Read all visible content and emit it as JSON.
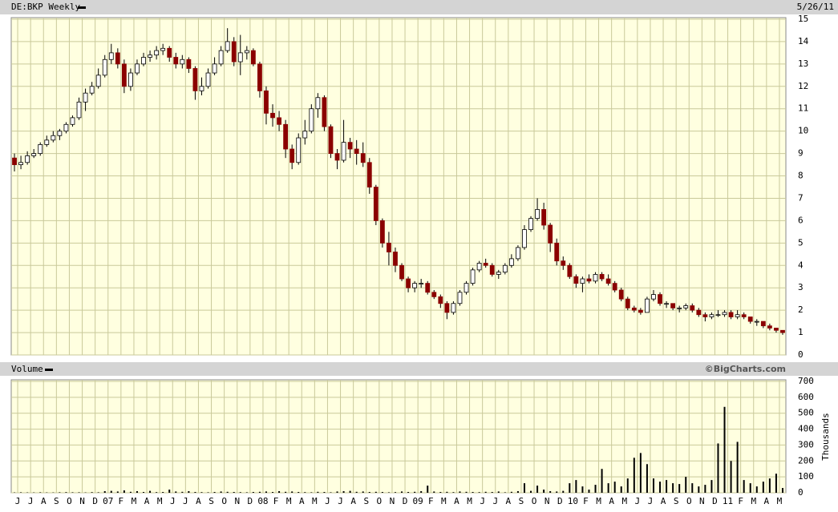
{
  "chart_data": [
    {
      "type": "candlestick",
      "title": "DE:BKP Weekly",
      "date": "5/26/11",
      "ylim": [
        0,
        15
      ],
      "yticks": [
        0,
        1,
        2,
        3,
        4,
        5,
        6,
        7,
        8,
        9,
        10,
        11,
        12,
        13,
        14,
        15
      ],
      "grid": true,
      "up_color": "#ffffff",
      "down_color": "#8b0000",
      "ohlc": [
        [
          8.8,
          9.0,
          8.2,
          8.5
        ],
        [
          8.5,
          8.9,
          8.3,
          8.6
        ],
        [
          8.6,
          9.1,
          8.5,
          8.9
        ],
        [
          8.9,
          9.2,
          8.8,
          9.0
        ],
        [
          9.0,
          9.5,
          8.9,
          9.4
        ],
        [
          9.4,
          9.8,
          9.3,
          9.6
        ],
        [
          9.6,
          10.0,
          9.5,
          9.8
        ],
        [
          9.8,
          10.1,
          9.6,
          10.0
        ],
        [
          10.0,
          10.4,
          9.9,
          10.3
        ],
        [
          10.3,
          10.7,
          10.2,
          10.6
        ],
        [
          10.6,
          11.5,
          10.5,
          11.3
        ],
        [
          11.3,
          11.9,
          10.9,
          11.7
        ],
        [
          11.7,
          12.2,
          11.6,
          12.0
        ],
        [
          12.0,
          12.8,
          11.9,
          12.5
        ],
        [
          12.5,
          13.4,
          12.4,
          13.2
        ],
        [
          13.2,
          13.9,
          13.0,
          13.5
        ],
        [
          13.5,
          13.7,
          12.8,
          13.0
        ],
        [
          13.0,
          13.2,
          11.7,
          12.0
        ],
        [
          12.0,
          12.8,
          11.8,
          12.6
        ],
        [
          12.6,
          13.2,
          12.5,
          13.0
        ],
        [
          13.0,
          13.5,
          12.9,
          13.3
        ],
        [
          13.3,
          13.6,
          13.1,
          13.4
        ],
        [
          13.4,
          13.8,
          13.2,
          13.6
        ],
        [
          13.6,
          13.9,
          13.4,
          13.7
        ],
        [
          13.7,
          13.8,
          13.1,
          13.3
        ],
        [
          13.3,
          13.5,
          12.8,
          13.0
        ],
        [
          13.0,
          13.4,
          12.8,
          13.2
        ],
        [
          13.2,
          13.3,
          12.6,
          12.8
        ],
        [
          12.8,
          12.9,
          11.4,
          11.8
        ],
        [
          11.8,
          12.4,
          11.6,
          12.0
        ],
        [
          12.0,
          12.8,
          11.9,
          12.6
        ],
        [
          12.6,
          13.3,
          12.5,
          13.0
        ],
        [
          13.0,
          13.8,
          12.9,
          13.6
        ],
        [
          13.6,
          14.6,
          13.5,
          14.0
        ],
        [
          14.0,
          14.2,
          12.9,
          13.1
        ],
        [
          13.1,
          14.3,
          12.5,
          13.5
        ],
        [
          13.5,
          13.8,
          13.2,
          13.6
        ],
        [
          13.6,
          13.7,
          12.9,
          13.0
        ],
        [
          13.0,
          13.1,
          11.5,
          11.8
        ],
        [
          11.8,
          12.0,
          10.3,
          10.8
        ],
        [
          10.8,
          11.2,
          10.2,
          10.6
        ],
        [
          10.6,
          10.9,
          10.0,
          10.3
        ],
        [
          10.3,
          10.5,
          8.8,
          9.2
        ],
        [
          9.2,
          9.4,
          8.3,
          8.6
        ],
        [
          8.6,
          9.9,
          8.5,
          9.7
        ],
        [
          9.7,
          10.5,
          9.4,
          10.0
        ],
        [
          10.0,
          11.2,
          9.9,
          11.0
        ],
        [
          11.0,
          11.7,
          10.6,
          11.5
        ],
        [
          11.5,
          11.6,
          10.0,
          10.2
        ],
        [
          10.2,
          10.3,
          8.8,
          9.0
        ],
        [
          9.0,
          9.2,
          8.3,
          8.7
        ],
        [
          8.7,
          10.5,
          8.6,
          9.5
        ],
        [
          9.5,
          9.7,
          8.8,
          9.2
        ],
        [
          9.2,
          9.6,
          8.5,
          9.0
        ],
        [
          9.0,
          9.5,
          8.4,
          8.6
        ],
        [
          8.6,
          8.8,
          7.2,
          7.5
        ],
        [
          7.5,
          7.6,
          5.8,
          6.0
        ],
        [
          6.0,
          6.1,
          4.8,
          5.0
        ],
        [
          5.0,
          5.5,
          4.0,
          4.6
        ],
        [
          4.6,
          4.8,
          3.7,
          4.0
        ],
        [
          4.0,
          4.1,
          3.3,
          3.4
        ],
        [
          3.4,
          3.5,
          2.8,
          3.0
        ],
        [
          3.0,
          3.3,
          2.8,
          3.2
        ],
        [
          3.2,
          3.4,
          3.0,
          3.2
        ],
        [
          3.2,
          3.3,
          2.7,
          2.8
        ],
        [
          2.8,
          2.9,
          2.5,
          2.6
        ],
        [
          2.6,
          2.7,
          2.1,
          2.3
        ],
        [
          2.3,
          2.4,
          1.6,
          1.9
        ],
        [
          1.9,
          2.4,
          1.8,
          2.3
        ],
        [
          2.3,
          2.9,
          2.2,
          2.8
        ],
        [
          2.8,
          3.3,
          2.7,
          3.2
        ],
        [
          3.2,
          3.9,
          3.1,
          3.8
        ],
        [
          3.8,
          4.2,
          3.7,
          4.1
        ],
        [
          4.1,
          4.3,
          3.9,
          4.0
        ],
        [
          4.0,
          4.1,
          3.5,
          3.6
        ],
        [
          3.6,
          3.8,
          3.4,
          3.7
        ],
        [
          3.7,
          4.1,
          3.6,
          4.0
        ],
        [
          4.0,
          4.5,
          3.9,
          4.3
        ],
        [
          4.3,
          4.9,
          4.2,
          4.8
        ],
        [
          4.8,
          5.8,
          4.7,
          5.6
        ],
        [
          5.6,
          6.2,
          5.5,
          6.1
        ],
        [
          6.1,
          7.0,
          6.0,
          6.5
        ],
        [
          6.5,
          6.8,
          5.6,
          5.8
        ],
        [
          5.8,
          5.9,
          4.6,
          5.0
        ],
        [
          5.0,
          5.2,
          4.0,
          4.2
        ],
        [
          4.2,
          4.4,
          3.8,
          4.0
        ],
        [
          4.0,
          4.1,
          3.4,
          3.5
        ],
        [
          3.5,
          3.6,
          3.0,
          3.2
        ],
        [
          3.2,
          3.5,
          2.8,
          3.4
        ],
        [
          3.4,
          3.6,
          3.2,
          3.3
        ],
        [
          3.3,
          3.7,
          3.2,
          3.6
        ],
        [
          3.6,
          3.7,
          3.3,
          3.4
        ],
        [
          3.4,
          3.6,
          3.1,
          3.2
        ],
        [
          3.2,
          3.3,
          2.8,
          2.9
        ],
        [
          2.9,
          3.0,
          2.4,
          2.5
        ],
        [
          2.5,
          2.6,
          2.0,
          2.1
        ],
        [
          2.1,
          2.2,
          1.9,
          2.0
        ],
        [
          2.0,
          2.1,
          1.8,
          1.9
        ],
        [
          1.9,
          2.6,
          1.9,
          2.5
        ],
        [
          2.5,
          2.9,
          2.4,
          2.7
        ],
        [
          2.7,
          2.8,
          2.2,
          2.3
        ],
        [
          2.3,
          2.4,
          2.1,
          2.3
        ],
        [
          2.3,
          2.3,
          2.0,
          2.1
        ],
        [
          2.1,
          2.2,
          1.9,
          2.1
        ],
        [
          2.1,
          2.3,
          2.0,
          2.2
        ],
        [
          2.2,
          2.3,
          1.9,
          2.0
        ],
        [
          2.0,
          2.1,
          1.7,
          1.8
        ],
        [
          1.8,
          1.9,
          1.5,
          1.7
        ],
        [
          1.7,
          1.9,
          1.6,
          1.8
        ],
        [
          1.8,
          2.0,
          1.7,
          1.8
        ],
        [
          1.8,
          2.0,
          1.7,
          1.9
        ],
        [
          1.9,
          2.0,
          1.6,
          1.7
        ],
        [
          1.7,
          2.0,
          1.6,
          1.8
        ],
        [
          1.8,
          1.9,
          1.6,
          1.7
        ],
        [
          1.7,
          1.7,
          1.4,
          1.5
        ],
        [
          1.5,
          1.6,
          1.3,
          1.5
        ],
        [
          1.5,
          1.5,
          1.2,
          1.3
        ],
        [
          1.3,
          1.4,
          1.1,
          1.2
        ],
        [
          1.2,
          1.2,
          1.0,
          1.1
        ],
        [
          1.1,
          1.1,
          0.9,
          1.0
        ]
      ]
    },
    {
      "type": "bar",
      "title": "Volume",
      "source": "©BigCharts.com",
      "y_label": "Thousands",
      "ylim": [
        0,
        700
      ],
      "yticks": [
        0,
        100,
        200,
        300,
        400,
        500,
        600,
        700
      ],
      "grid": true,
      "color": "#000000",
      "month_labels": [
        "J",
        "J",
        "A",
        "S",
        "O",
        "N",
        "D",
        "07",
        "F",
        "M",
        "A",
        "M",
        "J",
        "J",
        "A",
        "S",
        "O",
        "N",
        "D",
        "08",
        "F",
        "M",
        "A",
        "M",
        "J",
        "J",
        "A",
        "S",
        "O",
        "N",
        "D",
        "09",
        "F",
        "M",
        "A",
        "M",
        "J",
        "J",
        "A",
        "S",
        "O",
        "N",
        "D",
        "10",
        "F",
        "M",
        "A",
        "M",
        "J",
        "J",
        "A",
        "S",
        "O",
        "N",
        "D",
        "11",
        "F",
        "M",
        "A",
        "M"
      ],
      "values": [
        2,
        3,
        2,
        2,
        3,
        2,
        2,
        3,
        4,
        3,
        3,
        2,
        4,
        3,
        10,
        12,
        8,
        15,
        6,
        10,
        5,
        12,
        4,
        5,
        20,
        8,
        6,
        10,
        5,
        4,
        3,
        5,
        8,
        6,
        5,
        4,
        3,
        5,
        6,
        8,
        5,
        10,
        6,
        8,
        5,
        4,
        3,
        6,
        5,
        3,
        8,
        10,
        12,
        6,
        8,
        5,
        6,
        5,
        3,
        4,
        8,
        5,
        6,
        10,
        45,
        8,
        5,
        6,
        4,
        8,
        6,
        5,
        4,
        6,
        5,
        8,
        3,
        6,
        10,
        60,
        12,
        45,
        20,
        10,
        8,
        12,
        60,
        80,
        40,
        20,
        50,
        150,
        60,
        70,
        40,
        90,
        220,
        250,
        180,
        90,
        70,
        80,
        60,
        55,
        100,
        60,
        40,
        50,
        80,
        310,
        540,
        200,
        320,
        80,
        60,
        40,
        70,
        90,
        120,
        30
      ]
    }
  ]
}
